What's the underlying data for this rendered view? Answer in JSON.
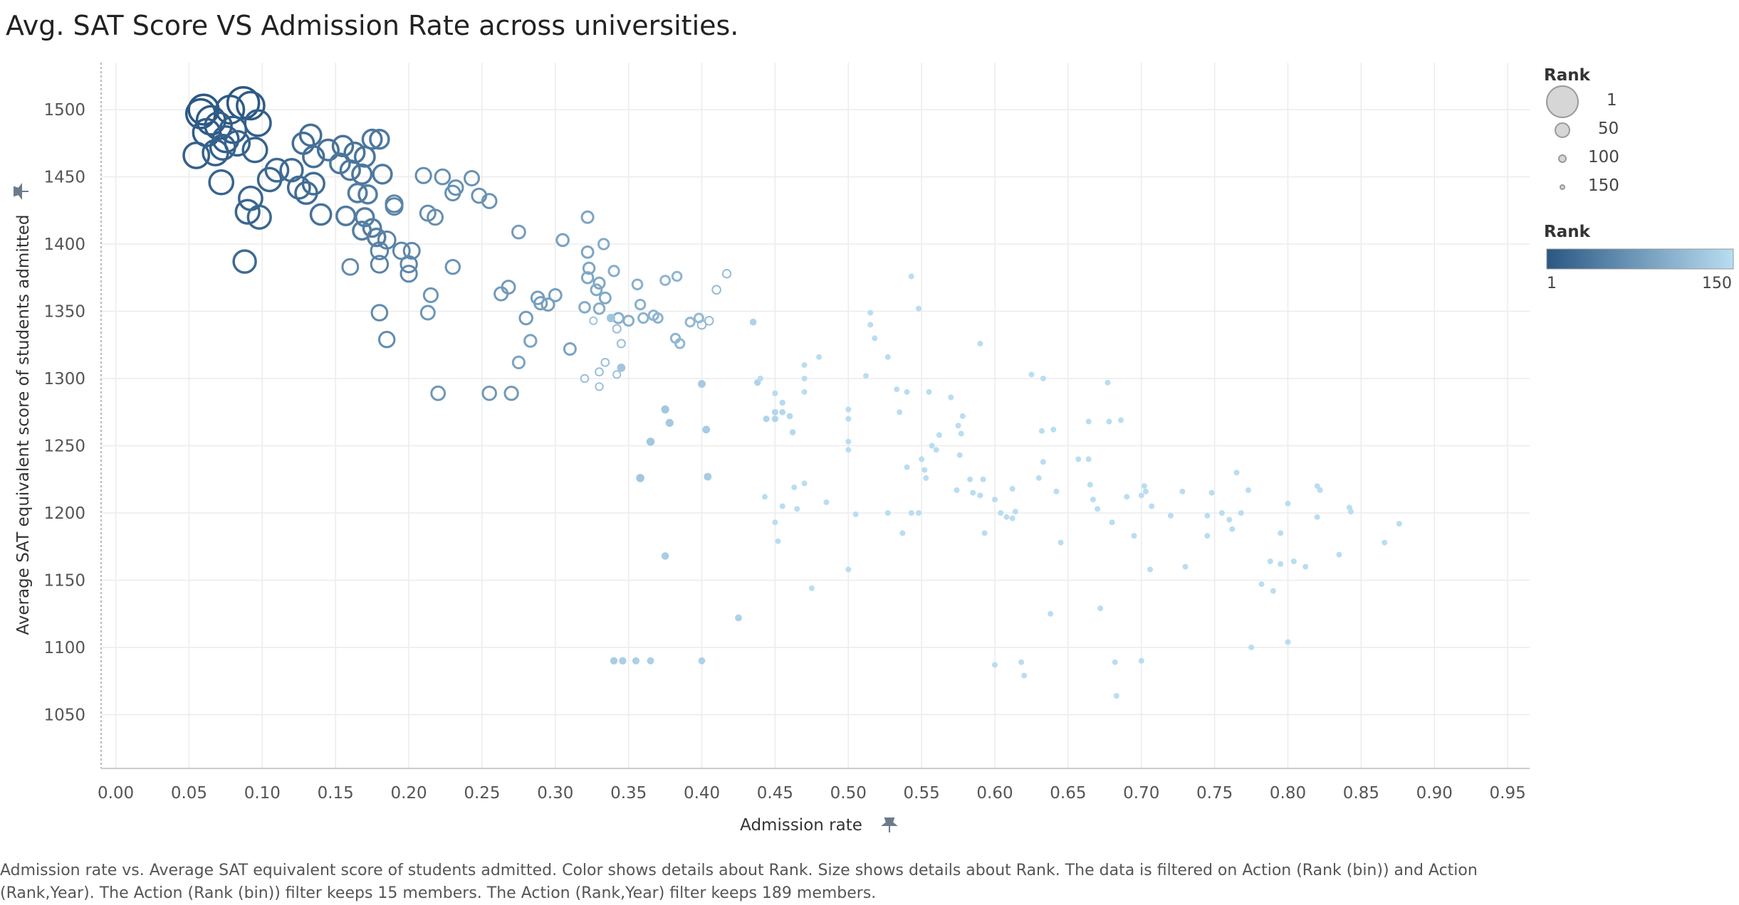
{
  "title": "Avg. SAT Score VS Admission Rate across universities.",
  "footnote": "Admission rate vs. Average SAT equivalent score of students admitted.  Color shows details about Rank.  Size shows details about Rank. The data is filtered on Action (Rank (bin)) and Action (Rank,Year). The Action (Rank (bin)) filter keeps 15 members. The Action (Rank,Year) filter keeps 189 members.",
  "legend": {
    "size_title": "Rank",
    "size_items": [
      "1",
      "50",
      "100",
      "150"
    ],
    "color_title": "Rank",
    "color_min": "1",
    "color_max": "150"
  },
  "colors": {
    "dark": "#2a5783",
    "light": "#b9ddf1",
    "grid": "#ececec",
    "axis": "#bbbbbb"
  },
  "chart_data": {
    "type": "scatter",
    "title": "Avg. SAT Score VS Admission Rate across universities.",
    "xlabel": "Admission rate",
    "ylabel": "Average SAT equivalent score of students admitted",
    "xlim": [
      -0.01,
      0.965
    ],
    "ylim": [
      1010,
      1535
    ],
    "xticks": [
      "0.00",
      "0.05",
      "0.10",
      "0.15",
      "0.20",
      "0.25",
      "0.30",
      "0.35",
      "0.40",
      "0.45",
      "0.50",
      "0.55",
      "0.60",
      "0.65",
      "0.70",
      "0.75",
      "0.80",
      "0.85",
      "0.90",
      "0.95"
    ],
    "yticks": [
      "1050",
      "1100",
      "1150",
      "1200",
      "1250",
      "1300",
      "1350",
      "1400",
      "1450",
      "1500"
    ],
    "grid": true,
    "size_encoding": "Rank",
    "color_encoding": "Rank",
    "rank_range": [
      1,
      150
    ],
    "columns": [
      "x",
      "y",
      "rank"
    ],
    "points": [
      [
        0.06,
        1500,
        2
      ],
      [
        0.058,
        1497,
        3
      ],
      [
        0.065,
        1492,
        4
      ],
      [
        0.078,
        1500,
        5
      ],
      [
        0.087,
        1505,
        1
      ],
      [
        0.092,
        1503,
        6
      ],
      [
        0.07,
        1488,
        8
      ],
      [
        0.08,
        1485,
        9
      ],
      [
        0.062,
        1483,
        7
      ],
      [
        0.075,
        1478,
        10
      ],
      [
        0.055,
        1466,
        11
      ],
      [
        0.068,
        1468,
        12
      ],
      [
        0.073,
        1472,
        13
      ],
      [
        0.083,
        1475,
        14
      ],
      [
        0.097,
        1490,
        10
      ],
      [
        0.095,
        1470,
        15
      ],
      [
        0.072,
        1446,
        16
      ],
      [
        0.092,
        1434,
        18
      ],
      [
        0.098,
        1420,
        20
      ],
      [
        0.09,
        1424,
        17
      ],
      [
        0.088,
        1387,
        22
      ],
      [
        0.105,
        1448,
        19
      ],
      [
        0.11,
        1455,
        21
      ],
      [
        0.12,
        1455,
        23
      ],
      [
        0.125,
        1442,
        24
      ],
      [
        0.13,
        1438,
        25
      ],
      [
        0.135,
        1445,
        26
      ],
      [
        0.128,
        1475,
        27
      ],
      [
        0.133,
        1481,
        28
      ],
      [
        0.135,
        1465,
        29
      ],
      [
        0.145,
        1470,
        30
      ],
      [
        0.14,
        1422,
        31
      ],
      [
        0.155,
        1473,
        32
      ],
      [
        0.163,
        1468,
        33
      ],
      [
        0.17,
        1465,
        34
      ],
      [
        0.153,
        1460,
        35
      ],
      [
        0.16,
        1455,
        36
      ],
      [
        0.168,
        1452,
        37
      ],
      [
        0.175,
        1478,
        38
      ],
      [
        0.18,
        1478,
        39
      ],
      [
        0.182,
        1452,
        40
      ],
      [
        0.157,
        1421,
        41
      ],
      [
        0.165,
        1438,
        42
      ],
      [
        0.172,
        1437,
        43
      ],
      [
        0.17,
        1420,
        44
      ],
      [
        0.168,
        1410,
        45
      ],
      [
        0.175,
        1412,
        46
      ],
      [
        0.178,
        1405,
        47
      ],
      [
        0.185,
        1403,
        48
      ],
      [
        0.18,
        1395,
        49
      ],
      [
        0.18,
        1385,
        50
      ],
      [
        0.19,
        1430,
        51
      ],
      [
        0.19,
        1428,
        52
      ],
      [
        0.195,
        1395,
        53
      ],
      [
        0.2,
        1385,
        54
      ],
      [
        0.2,
        1378,
        55
      ],
      [
        0.202,
        1395,
        56
      ],
      [
        0.16,
        1383,
        57
      ],
      [
        0.18,
        1349,
        58
      ],
      [
        0.185,
        1329,
        59
      ],
      [
        0.21,
        1451,
        60
      ],
      [
        0.213,
        1423,
        61
      ],
      [
        0.218,
        1420,
        62
      ],
      [
        0.223,
        1450,
        63
      ],
      [
        0.23,
        1438,
        64
      ],
      [
        0.232,
        1442,
        65
      ],
      [
        0.243,
        1449,
        66
      ],
      [
        0.248,
        1436,
        67
      ],
      [
        0.255,
        1432,
        68
      ],
      [
        0.23,
        1383,
        69
      ],
      [
        0.215,
        1362,
        70
      ],
      [
        0.213,
        1349,
        71
      ],
      [
        0.22,
        1289,
        72
      ],
      [
        0.255,
        1289,
        73
      ],
      [
        0.27,
        1289,
        74
      ],
      [
        0.263,
        1363,
        75
      ],
      [
        0.268,
        1368,
        76
      ],
      [
        0.275,
        1409,
        77
      ],
      [
        0.28,
        1345,
        78
      ],
      [
        0.288,
        1360,
        79
      ],
      [
        0.29,
        1356,
        80
      ],
      [
        0.295,
        1355,
        81
      ],
      [
        0.3,
        1362,
        82
      ],
      [
        0.305,
        1403,
        83
      ],
      [
        0.283,
        1328,
        84
      ],
      [
        0.275,
        1312,
        85
      ],
      [
        0.31,
        1322,
        86
      ],
      [
        0.322,
        1420,
        87
      ],
      [
        0.322,
        1394,
        88
      ],
      [
        0.323,
        1382,
        89
      ],
      [
        0.322,
        1375,
        90
      ],
      [
        0.33,
        1371,
        91
      ],
      [
        0.334,
        1360,
        92
      ],
      [
        0.328,
        1366,
        93
      ],
      [
        0.32,
        1353,
        94
      ],
      [
        0.33,
        1352,
        95
      ],
      [
        0.333,
        1400,
        96
      ],
      [
        0.34,
        1380,
        97
      ],
      [
        0.343,
        1345,
        98
      ],
      [
        0.35,
        1343,
        99
      ],
      [
        0.356,
        1370,
        100
      ],
      [
        0.358,
        1355,
        101
      ],
      [
        0.36,
        1345,
        102
      ],
      [
        0.367,
        1347,
        103
      ],
      [
        0.37,
        1345,
        104
      ],
      [
        0.375,
        1373,
        105
      ],
      [
        0.383,
        1376,
        106
      ],
      [
        0.382,
        1330,
        107
      ],
      [
        0.385,
        1326,
        108
      ],
      [
        0.392,
        1342,
        109
      ],
      [
        0.398,
        1345,
        110
      ],
      [
        0.4,
        1340,
        111
      ],
      [
        0.405,
        1343,
        112
      ],
      [
        0.41,
        1366,
        113
      ],
      [
        0.417,
        1378,
        114
      ],
      [
        0.342,
        1337,
        115
      ],
      [
        0.345,
        1326,
        116
      ],
      [
        0.33,
        1305,
        117
      ],
      [
        0.334,
        1312,
        118
      ],
      [
        0.32,
        1300,
        119
      ],
      [
        0.33,
        1294,
        120
      ],
      [
        0.342,
        1303,
        121
      ],
      [
        0.326,
        1343,
        122
      ],
      [
        0.338,
        1345,
        123
      ],
      [
        0.345,
        1308,
        124
      ],
      [
        0.358,
        1226,
        125
      ],
      [
        0.365,
        1253,
        126
      ],
      [
        0.375,
        1277,
        127
      ],
      [
        0.378,
        1267,
        128
      ],
      [
        0.4,
        1296,
        129
      ],
      [
        0.403,
        1262,
        130
      ],
      [
        0.404,
        1227,
        131
      ],
      [
        0.375,
        1168,
        132
      ],
      [
        0.34,
        1090,
        133
      ],
      [
        0.346,
        1090,
        134
      ],
      [
        0.355,
        1090,
        135
      ],
      [
        0.365,
        1090,
        136
      ],
      [
        0.4,
        1090,
        137
      ],
      [
        0.425,
        1122,
        138
      ],
      [
        0.435,
        1342,
        139
      ],
      [
        0.438,
        1297,
        140
      ],
      [
        0.444,
        1270,
        141
      ],
      [
        0.45,
        1270,
        142
      ],
      [
        0.45,
        1275,
        143
      ],
      [
        0.455,
        1275,
        144
      ],
      [
        0.46,
        1272,
        145
      ],
      [
        0.462,
        1260,
        146
      ],
      [
        0.455,
        1282,
        147
      ],
      [
        0.45,
        1289,
        148
      ],
      [
        0.44,
        1300,
        149
      ],
      [
        0.443,
        1212,
        150
      ],
      [
        0.45,
        1193,
        151
      ],
      [
        0.452,
        1179,
        152
      ],
      [
        0.455,
        1205,
        153
      ],
      [
        0.465,
        1203,
        154
      ],
      [
        0.463,
        1219,
        155
      ],
      [
        0.47,
        1222,
        156
      ],
      [
        0.47,
        1310,
        157
      ],
      [
        0.47,
        1300,
        158
      ],
      [
        0.47,
        1290,
        159
      ],
      [
        0.48,
        1316,
        160
      ],
      [
        0.475,
        1144,
        161
      ],
      [
        0.485,
        1208,
        162
      ],
      [
        0.5,
        1277,
        163
      ],
      [
        0.5,
        1270,
        164
      ],
      [
        0.5,
        1253,
        165
      ],
      [
        0.5,
        1247,
        166
      ],
      [
        0.5,
        1158,
        167
      ],
      [
        0.505,
        1199,
        168
      ],
      [
        0.512,
        1302,
        169
      ],
      [
        0.515,
        1349,
        170
      ],
      [
        0.515,
        1340,
        171
      ],
      [
        0.518,
        1330,
        172
      ],
      [
        0.527,
        1316,
        173
      ],
      [
        0.527,
        1200,
        174
      ],
      [
        0.533,
        1292,
        175
      ],
      [
        0.535,
        1275,
        176
      ],
      [
        0.537,
        1185,
        177
      ],
      [
        0.54,
        1290,
        178
      ],
      [
        0.54,
        1234,
        179
      ],
      [
        0.543,
        1376,
        180
      ],
      [
        0.543,
        1200,
        181
      ],
      [
        0.548,
        1200,
        182
      ],
      [
        0.548,
        1352,
        183
      ],
      [
        0.55,
        1240,
        184
      ],
      [
        0.552,
        1232,
        185
      ],
      [
        0.553,
        1226,
        186
      ],
      [
        0.555,
        1290,
        187
      ],
      [
        0.557,
        1250,
        188
      ],
      [
        0.56,
        1247,
        189
      ],
      [
        0.562,
        1258,
        190
      ],
      [
        0.57,
        1286,
        191
      ],
      [
        0.575,
        1265,
        192
      ],
      [
        0.577,
        1259,
        193
      ],
      [
        0.578,
        1272,
        194
      ],
      [
        0.576,
        1243,
        195
      ],
      [
        0.574,
        1217,
        196
      ],
      [
        0.583,
        1225,
        197
      ],
      [
        0.585,
        1215,
        198
      ],
      [
        0.59,
        1326,
        199
      ],
      [
        0.592,
        1225,
        200
      ],
      [
        0.59,
        1213,
        201
      ],
      [
        0.593,
        1185,
        202
      ],
      [
        0.6,
        1210,
        203
      ],
      [
        0.604,
        1200,
        204
      ],
      [
        0.608,
        1197,
        205
      ],
      [
        0.612,
        1196,
        206
      ],
      [
        0.614,
        1201,
        207
      ],
      [
        0.618,
        1089,
        208
      ],
      [
        0.6,
        1087,
        209
      ],
      [
        0.612,
        1218,
        210
      ],
      [
        0.625,
        1303,
        211
      ],
      [
        0.633,
        1300,
        212
      ],
      [
        0.63,
        1226,
        213
      ],
      [
        0.632,
        1261,
        214
      ],
      [
        0.633,
        1238,
        215
      ],
      [
        0.64,
        1262,
        216
      ],
      [
        0.638,
        1125,
        217
      ],
      [
        0.642,
        1216,
        218
      ],
      [
        0.645,
        1178,
        219
      ],
      [
        0.657,
        1240,
        220
      ],
      [
        0.664,
        1240,
        221
      ],
      [
        0.664,
        1268,
        222
      ],
      [
        0.665,
        1221,
        223
      ],
      [
        0.667,
        1210,
        224
      ],
      [
        0.67,
        1203,
        225
      ],
      [
        0.672,
        1129,
        226
      ],
      [
        0.677,
        1297,
        227
      ],
      [
        0.678,
        1268,
        228
      ],
      [
        0.68,
        1193,
        229
      ],
      [
        0.683,
        1064,
        230
      ],
      [
        0.686,
        1269,
        231
      ],
      [
        0.69,
        1212,
        232
      ],
      [
        0.695,
        1183,
        233
      ],
      [
        0.7,
        1213,
        234
      ],
      [
        0.702,
        1220,
        235
      ],
      [
        0.703,
        1216,
        236
      ],
      [
        0.706,
        1158,
        237
      ],
      [
        0.707,
        1205,
        238
      ],
      [
        0.72,
        1198,
        239
      ],
      [
        0.728,
        1216,
        240
      ],
      [
        0.73,
        1160,
        241
      ],
      [
        0.745,
        1198,
        242
      ],
      [
        0.745,
        1183,
        243
      ],
      [
        0.748,
        1215,
        244
      ],
      [
        0.755,
        1200,
        245
      ],
      [
        0.76,
        1195,
        246
      ],
      [
        0.762,
        1188,
        247
      ],
      [
        0.765,
        1230,
        248
      ],
      [
        0.768,
        1200,
        249
      ],
      [
        0.773,
        1217,
        250
      ],
      [
        0.782,
        1147,
        251
      ],
      [
        0.788,
        1164,
        252
      ],
      [
        0.795,
        1162,
        253
      ],
      [
        0.795,
        1185,
        254
      ],
      [
        0.8,
        1207,
        255
      ],
      [
        0.804,
        1164,
        256
      ],
      [
        0.82,
        1220,
        257
      ],
      [
        0.822,
        1217,
        258
      ],
      [
        0.842,
        1204,
        259
      ],
      [
        0.843,
        1201,
        260
      ],
      [
        0.866,
        1178,
        261
      ],
      [
        0.876,
        1192,
        262
      ],
      [
        0.79,
        1142,
        263
      ],
      [
        0.812,
        1160,
        264
      ],
      [
        0.82,
        1197,
        265
      ],
      [
        0.835,
        1169,
        266
      ],
      [
        0.775,
        1100,
        267
      ],
      [
        0.8,
        1104,
        268
      ],
      [
        0.7,
        1090,
        269
      ],
      [
        0.682,
        1089,
        270
      ],
      [
        0.62,
        1079,
        271
      ]
    ]
  }
}
